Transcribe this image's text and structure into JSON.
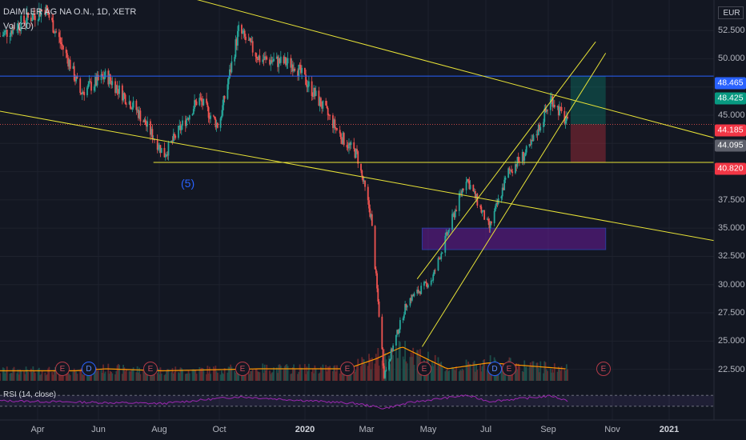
{
  "symbol_title": "DAIMLER AG NA O.N., 1D, XETR",
  "volume_label": "Vol (20)",
  "rsi_label": "RSI (14, close)",
  "currency": "EUR",
  "wave_label": "(5)",
  "price_ticks": [
    "52.500",
    "50.000",
    "45.000",
    "42.500",
    "40.000",
    "37.500",
    "35.000",
    "32.500",
    "30.000",
    "27.500",
    "25.000",
    "22.500"
  ],
  "price_tags": [
    {
      "label": "48.465",
      "color": "#2962ff"
    },
    {
      "label": "48.425",
      "color": "#089981"
    },
    {
      "label": "44.185",
      "color": "#f23645"
    },
    {
      "label": "44.095",
      "color": "#5d606b"
    },
    {
      "label": "40.820",
      "color": "#f23645"
    }
  ],
  "time_ticks": [
    {
      "label": "Apr",
      "bold": false
    },
    {
      "label": "Jun",
      "bold": false
    },
    {
      "label": "Aug",
      "bold": false
    },
    {
      "label": "Oct",
      "bold": false
    },
    {
      "label": "2020",
      "bold": true
    },
    {
      "label": "Mar",
      "bold": false
    },
    {
      "label": "May",
      "bold": false
    },
    {
      "label": "Jul",
      "bold": false
    },
    {
      "label": "Sep",
      "bold": false
    },
    {
      "label": "Nov",
      "bold": false
    },
    {
      "label": "2021",
      "bold": true
    }
  ],
  "event_markers": [
    {
      "label": "E",
      "type": "earnings"
    },
    {
      "label": "D",
      "type": "dividend"
    },
    {
      "label": "E",
      "type": "earnings"
    },
    {
      "label": "E",
      "type": "earnings"
    },
    {
      "label": "E",
      "type": "earnings"
    },
    {
      "label": "E",
      "type": "earnings"
    },
    {
      "label": "D",
      "type": "dividend"
    },
    {
      "label": "E",
      "type": "earnings"
    },
    {
      "label": "E",
      "type": "earnings"
    }
  ],
  "colors": {
    "background": "#131722",
    "up_candle": "#26a69a",
    "down_candle": "#ef5350",
    "trendline": "#e8e337",
    "horizontal_blue": "#2962ff",
    "volume_ma": "#ff9800",
    "rsi_line": "#9c27b0",
    "zone": "#6a1b9a"
  },
  "chart_data": {
    "type": "candlestick",
    "symbol": "DAIMLER AG NA O.N.",
    "interval": "1D",
    "exchange": "XETR",
    "y_range": [
      21.2,
      55.2
    ],
    "x_range": [
      "2019-03-01",
      "2021-02-10"
    ],
    "price_path": [
      {
        "date": "2019-03-01",
        "close": 52.0
      },
      {
        "date": "2019-04-15",
        "close": 54.5
      },
      {
        "date": "2019-05-10",
        "close": 49.5
      },
      {
        "date": "2019-05-20",
        "close": 47.0
      },
      {
        "date": "2019-06-15",
        "close": 48.5
      },
      {
        "date": "2019-07-15",
        "close": 45.5
      },
      {
        "date": "2019-08-12",
        "close": 41.5
      },
      {
        "date": "2019-09-15",
        "close": 46.5
      },
      {
        "date": "2019-10-05",
        "close": 44.0
      },
      {
        "date": "2019-10-25",
        "close": 52.5
      },
      {
        "date": "2019-11-15",
        "close": 50.0
      },
      {
        "date": "2019-12-20",
        "close": 49.5
      },
      {
        "date": "2020-01-15",
        "close": 46.0
      },
      {
        "date": "2020-02-05",
        "close": 43.0
      },
      {
        "date": "2020-02-20",
        "close": 41.5
      },
      {
        "date": "2020-03-05",
        "close": 36.0
      },
      {
        "date": "2020-03-18",
        "close": 22.0
      },
      {
        "date": "2020-04-10",
        "close": 28.5
      },
      {
        "date": "2020-05-05",
        "close": 30.5
      },
      {
        "date": "2020-06-08",
        "close": 39.5
      },
      {
        "date": "2020-07-01",
        "close": 35.0
      },
      {
        "date": "2020-07-20",
        "close": 40.0
      },
      {
        "date": "2020-08-10",
        "close": 42.0
      },
      {
        "date": "2020-09-01",
        "close": 46.5
      },
      {
        "date": "2020-09-17",
        "close": 44.2
      }
    ],
    "horizontal_levels": [
      48.465,
      40.82,
      44.185
    ],
    "trendlines": [
      {
        "from": [
          "2019-07-01",
          57.0
        ],
        "to": [
          "2021-02-10",
          43.0
        ]
      },
      {
        "from": [
          "2019-02-20",
          45.5
        ],
        "to": [
          "2021-02-10",
          33.9
        ]
      },
      {
        "from": [
          "2020-04-25",
          24.5
        ],
        "to": [
          "2020-10-25",
          50.5
        ]
      },
      {
        "from": [
          "2020-04-20",
          30.5
        ],
        "to": [
          "2020-10-15",
          51.5
        ]
      }
    ],
    "position_box": {
      "start": "2020-09-20",
      "end": "2020-10-25",
      "target": 48.465,
      "entry": 44.185,
      "stop": 40.82
    },
    "demand_zone": {
      "start": "2020-04-25",
      "end": "2020-10-25",
      "top": 35.0,
      "bottom": 33.1
    },
    "volume_ma_path": [
      {
        "date": "2019-03-01",
        "v": 0.25
      },
      {
        "date": "2019-05-15",
        "v": 0.25
      },
      {
        "date": "2019-06-15",
        "v": 0.3
      },
      {
        "date": "2019-08-10",
        "v": 0.25
      },
      {
        "date": "2019-11-15",
        "v": 0.3
      },
      {
        "date": "2020-02-10",
        "v": 0.3
      },
      {
        "date": "2020-03-10",
        "v": 0.55
      },
      {
        "date": "2020-04-05",
        "v": 0.85
      },
      {
        "date": "2020-05-20",
        "v": 0.3
      },
      {
        "date": "2020-07-01",
        "v": 0.45
      },
      {
        "date": "2020-09-15",
        "v": 0.3
      }
    ],
    "rsi_levels": [
      70,
      30
    ],
    "rsi_path": [
      {
        "date": "2019-03-01",
        "v": 50
      },
      {
        "date": "2019-05-20",
        "v": 45
      },
      {
        "date": "2019-08-10",
        "v": 40
      },
      {
        "date": "2019-10-25",
        "v": 65
      },
      {
        "date": "2020-02-20",
        "v": 40
      },
      {
        "date": "2020-03-18",
        "v": 22
      },
      {
        "date": "2020-04-15",
        "v": 45
      },
      {
        "date": "2020-06-08",
        "v": 70
      },
      {
        "date": "2020-07-01",
        "v": 48
      },
      {
        "date": "2020-09-01",
        "v": 68
      },
      {
        "date": "2020-09-17",
        "v": 50
      }
    ]
  }
}
